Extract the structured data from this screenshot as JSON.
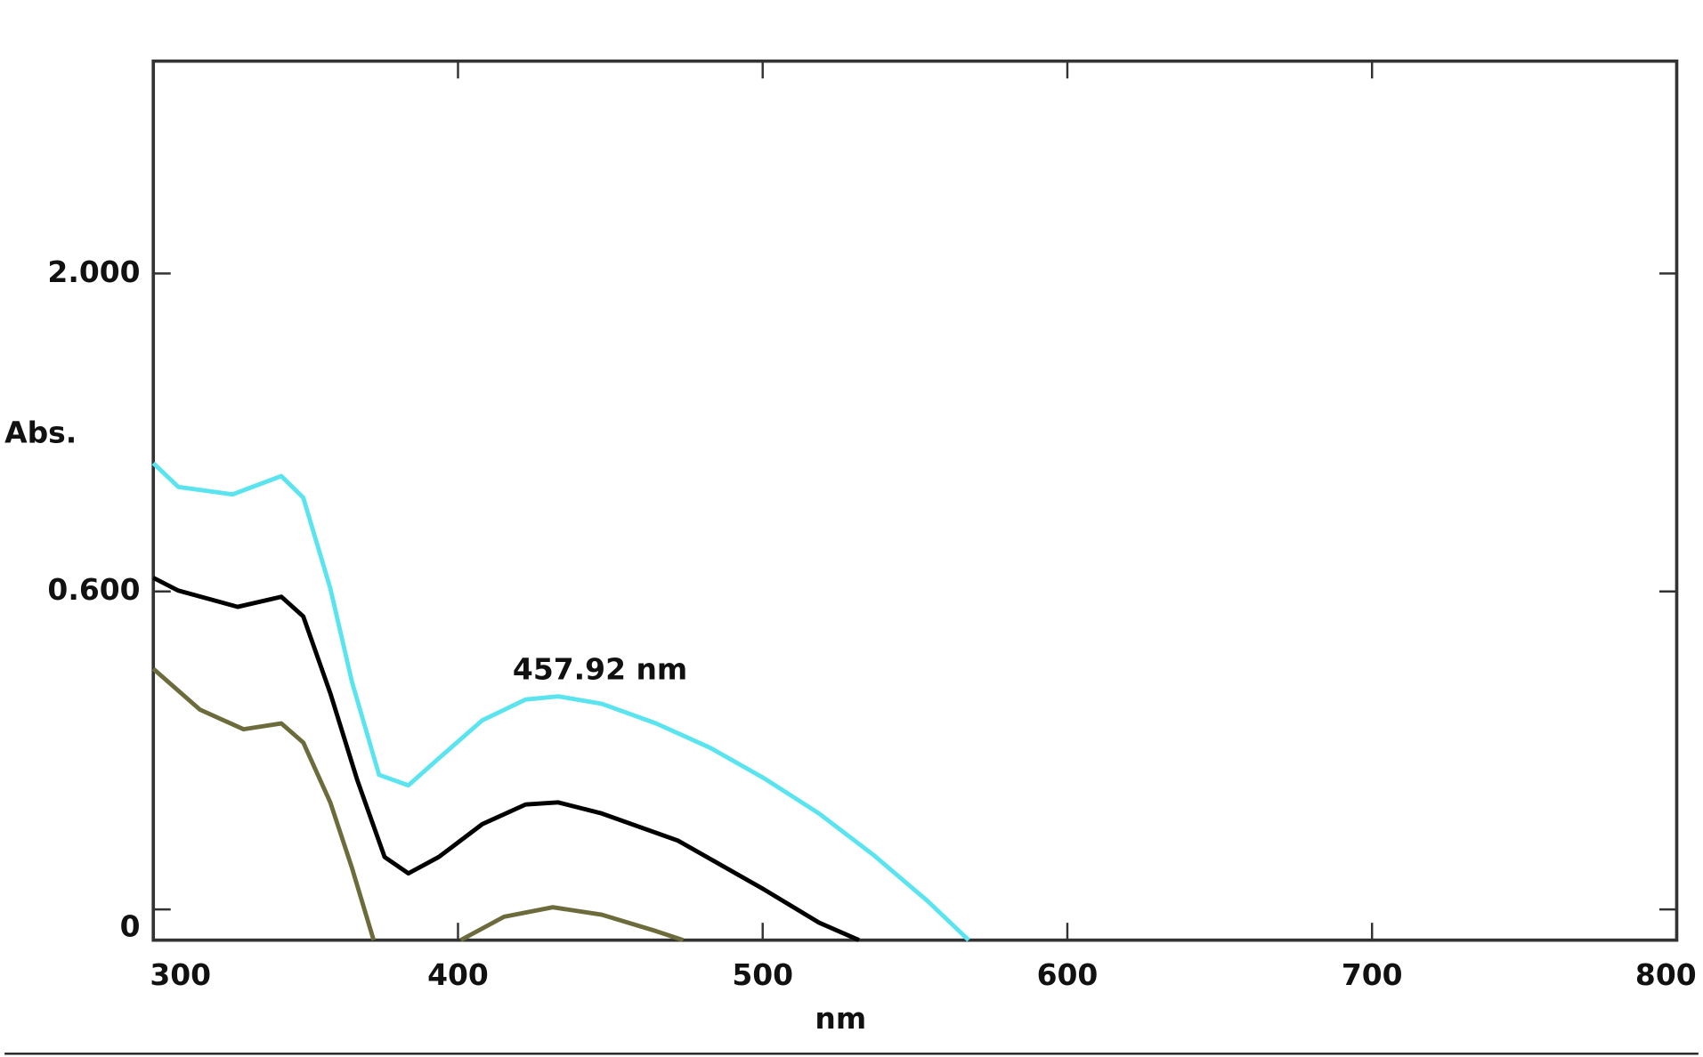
{
  "chart_data": {
    "type": "line",
    "xlabel": "nm",
    "ylabel": "Abs.",
    "annotation": "457.92 nm",
    "xlim": [
      300,
      800
    ],
    "xticks": [
      300,
      400,
      500,
      600,
      700,
      800
    ],
    "ylim": [
      -0.058,
      2.935
    ],
    "yticks": [
      {
        "value": 0,
        "label": "0"
      },
      {
        "value": 0.6,
        "label": "0.600"
      },
      {
        "value": 2,
        "label": "2.000"
      }
    ],
    "series": [
      {
        "color": "#5ae4ef",
        "x": [
          300,
          308.2,
          326,
          342,
          349.2,
          358.1,
          365.2,
          374.1,
          383.7,
          393.7,
          408,
          422.2,
          432.9,
          447.2,
          465,
          482.8,
          500.6,
          518.5,
          536.3,
          554.1,
          567.6
        ],
        "values": [
          1.165,
          1.06,
          1.027,
          1.108,
          1.013,
          0.614,
          0.429,
          0.254,
          0.234,
          0.285,
          0.357,
          0.396,
          0.402,
          0.388,
          0.351,
          0.305,
          0.247,
          0.181,
          0.103,
          0.016,
          -0.058
        ]
      },
      {
        "color": "#000000",
        "x": [
          300,
          308.2,
          327.7,
          342,
          349.2,
          358.1,
          367,
          375.9,
          383.7,
          393.7,
          408,
          422.2,
          432.9,
          447.2,
          472.1,
          500.6,
          518.5,
          531.6
        ],
        "values": [
          0.66,
          0.604,
          0.571,
          0.59,
          0.553,
          0.408,
          0.243,
          0.099,
          0.068,
          0.099,
          0.161,
          0.198,
          0.202,
          0.181,
          0.13,
          0.037,
          -0.025,
          -0.058
        ]
      },
      {
        "color": "#6b6b3c",
        "x": [
          300,
          315.3,
          329.6,
          342,
          349.2,
          358.1,
          365.2,
          372.3,
          null,
          400.9,
          415.1,
          431.1,
          447.2,
          465,
          473.9
        ],
        "values": [
          0.454,
          0.377,
          0.34,
          0.351,
          0.315,
          0.202,
          0.078,
          -0.058,
          null,
          -0.058,
          -0.014,
          0.004,
          -0.01,
          -0.041,
          -0.058
        ]
      }
    ]
  }
}
